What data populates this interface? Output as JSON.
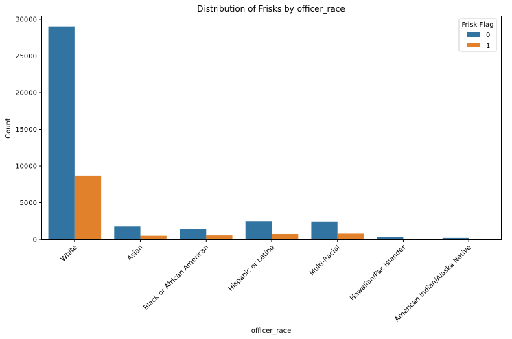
{
  "chart_data": {
    "type": "bar",
    "title": "Distribution of Frisks by officer_race",
    "xlabel": "officer_race",
    "ylabel": "Count",
    "ylim": [
      0,
      30370
    ],
    "yticks": [
      0,
      5000,
      10000,
      15000,
      20000,
      25000,
      30000
    ],
    "categories": [
      "White",
      "Asian",
      "Black or African American",
      "Hispanic or Latino",
      "Multi-Racial",
      "Hawaiian/Pac Islander",
      "American Indian/Alaska Native"
    ],
    "series": [
      {
        "name": "0",
        "color": "#3274a1",
        "values": [
          29000,
          1750,
          1400,
          2500,
          2450,
          300,
          200
        ]
      },
      {
        "name": "1",
        "color": "#e1812c",
        "values": [
          8700,
          500,
          550,
          750,
          800,
          80,
          60
        ]
      }
    ],
    "legend": {
      "title": "Frisk Flag",
      "placement": "top-right"
    },
    "grid": false
  }
}
